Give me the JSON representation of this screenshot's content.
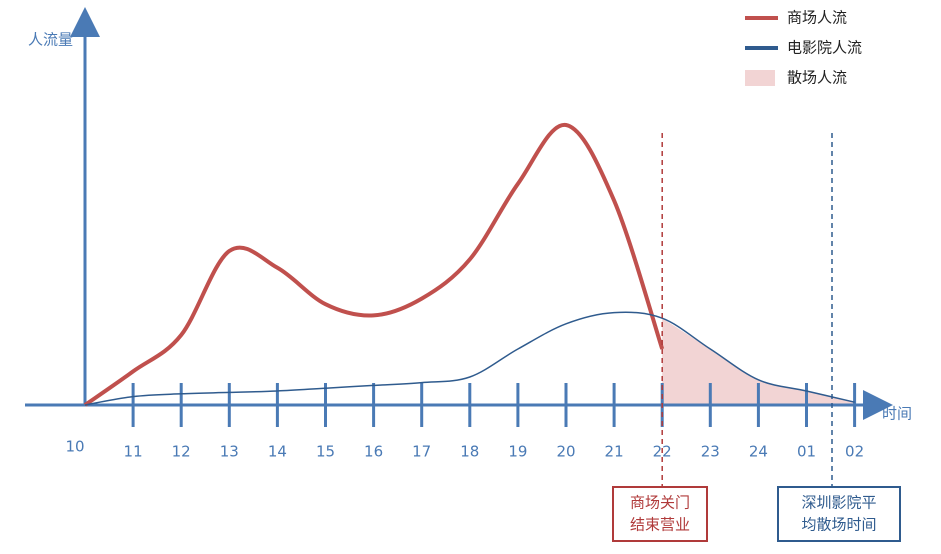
{
  "chart_data": {
    "type": "line",
    "x_label": "时间",
    "y_label": "人流量",
    "categories": [
      "10",
      "11",
      "12",
      "13",
      "14",
      "15",
      "16",
      "17",
      "18",
      "19",
      "20",
      "21",
      "22",
      "23",
      "24",
      "01",
      "02"
    ],
    "ylim": [
      0,
      135
    ],
    "series": [
      {
        "name": "商场人流",
        "color": "#c0504d",
        "kind": "line",
        "values": [
          0,
          12,
          25,
          55,
          49,
          36,
          32,
          38,
          52,
          79,
          100,
          73,
          20,
          null,
          null,
          null,
          null
        ]
      },
      {
        "name": "电影院人流",
        "color": "#2f5b8e",
        "kind": "line",
        "values": [
          0,
          3,
          4,
          4.5,
          5,
          6,
          7,
          8,
          10,
          20,
          29,
          33,
          31,
          20,
          9,
          5,
          1
        ]
      },
      {
        "name": "散场人流",
        "color": "#f2d4d4",
        "kind": "area",
        "values": [
          null,
          null,
          null,
          null,
          null,
          null,
          null,
          null,
          null,
          null,
          null,
          null,
          31,
          20,
          9,
          5,
          1
        ]
      }
    ],
    "annotations": [
      {
        "lines": [
          "商场关门",
          "结束营业"
        ],
        "color": "#b03a3a"
      },
      {
        "lines": [
          "深圳影院平",
          "均散场时间"
        ],
        "color": "#2f5b8e"
      }
    ]
  }
}
